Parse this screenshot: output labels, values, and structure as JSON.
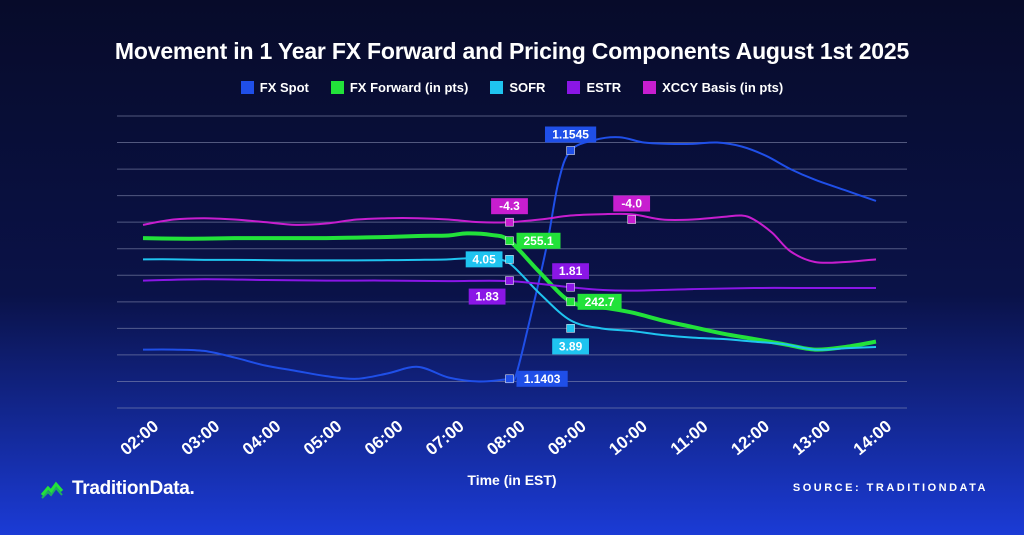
{
  "chart_data": {
    "type": "line",
    "title": "Movement in 1 Year FX Forward and Pricing Components August 1st 2025",
    "xlabel": "Time (in EST)",
    "ylabel": "",
    "grid": true,
    "legend": "top",
    "categories": [
      "02:00",
      "03:00",
      "04:00",
      "05:00",
      "06:00",
      "07:00",
      "08:00",
      "09:00",
      "10:00",
      "11:00",
      "12:00",
      "13:00",
      "14:00"
    ],
    "series": [
      {
        "name": "FX Spot",
        "color": "#1f4fe8",
        "x": [
          0,
          0.5,
          1,
          1.5,
          2,
          2.5,
          3,
          3.5,
          4,
          4.5,
          5,
          5.5,
          6,
          6.1,
          6.3,
          6.6,
          6.8,
          7,
          7.4,
          7.8,
          8.2,
          8.6,
          9,
          9.4,
          9.8,
          10.2,
          10.6,
          11,
          11.5,
          12
        ],
        "values": [
          0.2,
          0.2,
          0.15,
          -0.1,
          -0.4,
          -0.6,
          -0.8,
          -0.9,
          -0.7,
          -0.45,
          -0.85,
          -1.0,
          -0.9,
          -0.8,
          1,
          4,
          6.5,
          7.7,
          8.1,
          8.2,
          8.0,
          7.95,
          7.95,
          8.0,
          7.85,
          7.5,
          7.0,
          6.6,
          6.2,
          5.8
        ]
      },
      {
        "name": "FX Forward (in pts)",
        "color": "#22e23a",
        "x": [
          0,
          0.5,
          1,
          1.5,
          2,
          2.5,
          3,
          3.5,
          4,
          4.5,
          5,
          5.3,
          5.7,
          6,
          6.5,
          7,
          7.5,
          8,
          8.5,
          9,
          9.5,
          10,
          10.5,
          11,
          11.5,
          12
        ],
        "values": [
          4.4,
          4.38,
          4.38,
          4.4,
          4.4,
          4.4,
          4.4,
          4.42,
          4.44,
          4.48,
          4.5,
          4.58,
          4.52,
          4.3,
          3.1,
          2.0,
          1.8,
          1.6,
          1.3,
          1.05,
          0.8,
          0.6,
          0.4,
          0.2,
          0.3,
          0.5
        ]
      },
      {
        "name": "SOFR",
        "color": "#1fc4f0",
        "x": [
          0,
          0.5,
          1,
          1.5,
          2,
          2.5,
          3,
          3.5,
          4,
          4.5,
          5,
          5.5,
          5.7,
          6,
          6.5,
          7,
          7.5,
          8,
          8.5,
          9,
          9.5,
          10,
          10.5,
          11,
          11.5,
          12
        ],
        "values": [
          3.6,
          3.6,
          3.58,
          3.58,
          3.57,
          3.56,
          3.56,
          3.56,
          3.57,
          3.58,
          3.6,
          3.66,
          3.6,
          3.45,
          2.3,
          1.3,
          1.0,
          0.9,
          0.75,
          0.65,
          0.6,
          0.5,
          0.4,
          0.2,
          0.25,
          0.3
        ]
      },
      {
        "name": "ESTR",
        "color": "#8a16e6",
        "x": [
          0,
          1,
          2,
          3,
          4,
          5,
          6,
          7,
          7.5,
          8,
          9,
          10,
          11,
          12
        ],
        "values": [
          2.8,
          2.85,
          2.82,
          2.8,
          2.8,
          2.78,
          2.78,
          2.55,
          2.45,
          2.42,
          2.48,
          2.52,
          2.52,
          2.52
        ]
      },
      {
        "name": "XCCY Basis (in pts)",
        "color": "#c71ecf",
        "x": [
          0,
          0.5,
          1,
          1.5,
          2,
          2.5,
          3,
          3.5,
          4,
          4.5,
          5,
          5.5,
          6,
          6.5,
          7,
          7.5,
          8,
          8.5,
          9,
          9.5,
          9.8,
          10,
          10.3,
          10.6,
          11,
          11.5,
          12
        ],
        "values": [
          4.9,
          5.1,
          5.15,
          5.1,
          5.0,
          4.9,
          4.95,
          5.1,
          5.15,
          5.15,
          5.1,
          5.0,
          5.0,
          5.1,
          5.25,
          5.3,
          5.3,
          5.1,
          5.1,
          5.2,
          5.25,
          5.1,
          4.6,
          3.9,
          3.5,
          3.5,
          3.6
        ]
      }
    ],
    "annotations": [
      {
        "text": "1.1545",
        "x": 7,
        "y": 7.7,
        "color": "#1f4fe8",
        "side": "above"
      },
      {
        "text": "1.1403",
        "x": 6,
        "y": -0.9,
        "color": "#1f4fe8",
        "side": "right"
      },
      {
        "text": "255.1",
        "x": 6,
        "y": 4.3,
        "color": "#22e23a",
        "side": "right"
      },
      {
        "text": "242.7",
        "x": 7,
        "y": 2.0,
        "color": "#22e23a",
        "side": "right"
      },
      {
        "text": "4.05",
        "x": 6,
        "y": 3.6,
        "color": "#1fc4f0",
        "side": "left"
      },
      {
        "text": "3.89",
        "x": 7,
        "y": 1.0,
        "color": "#1fc4f0",
        "side": "below"
      },
      {
        "text": "1.83",
        "x": 6,
        "y": 2.8,
        "color": "#8a16e6",
        "side": "belowleft"
      },
      {
        "text": "1.81",
        "x": 7,
        "y": 2.55,
        "color": "#8a16e6",
        "side": "above"
      },
      {
        "text": "-4.3",
        "x": 6,
        "y": 5.0,
        "color": "#c71ecf",
        "side": "above"
      },
      {
        "text": "-4.0",
        "x": 8,
        "y": 5.1,
        "color": "#c71ecf",
        "side": "above"
      }
    ]
  },
  "brand": {
    "name": "TraditionData."
  },
  "source": "SOURCE: TRADITIONDATA"
}
